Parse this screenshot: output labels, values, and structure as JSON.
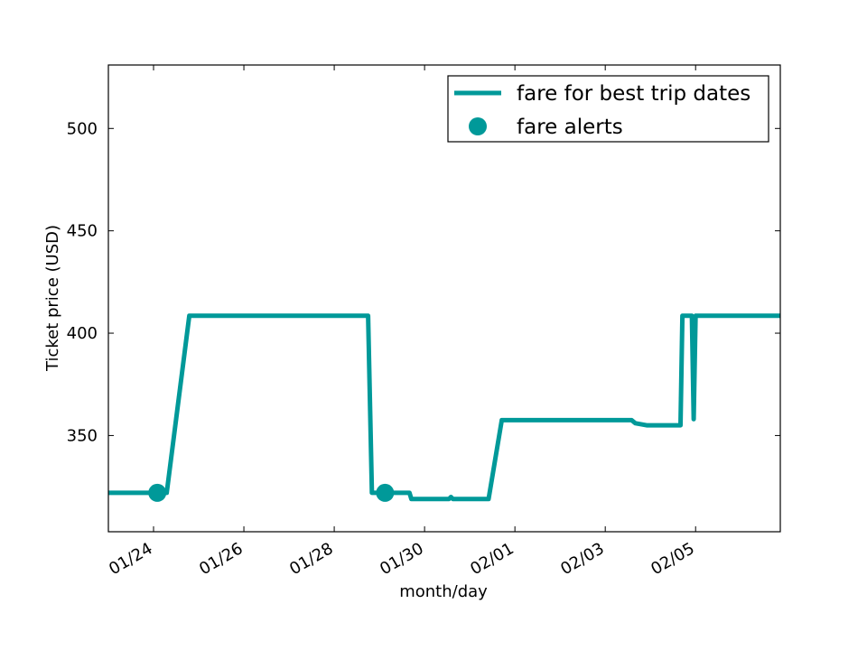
{
  "chart_data": {
    "type": "line",
    "title": "",
    "xlabel": "month/day",
    "ylabel": "Ticket price (USD)",
    "x_axis_type": "date",
    "xlim": [
      "2015-01-23T00:00",
      "2015-02-06T21:00"
    ],
    "ylim": [
      303,
      531
    ],
    "x_ticks": [
      {
        "date": "2015-01-24",
        "label": "01/24"
      },
      {
        "date": "2015-01-26",
        "label": "01/26"
      },
      {
        "date": "2015-01-28",
        "label": "01/28"
      },
      {
        "date": "2015-01-30",
        "label": "01/30"
      },
      {
        "date": "2015-02-01",
        "label": "02/01"
      },
      {
        "date": "2015-02-03",
        "label": "02/03"
      },
      {
        "date": "2015-02-05",
        "label": "02/05"
      }
    ],
    "y_ticks": [
      350,
      400,
      450,
      500
    ],
    "grid": false,
    "legend_position": "top-right",
    "series": [
      {
        "name": "fare for best trip dates",
        "style": "line",
        "color": "#009999",
        "points": [
          [
            "2015-01-23T00:00",
            322
          ],
          [
            "2015-01-24T07:00",
            322
          ],
          [
            "2015-01-24T19:00",
            408.5
          ],
          [
            "2015-01-28T18:00",
            408.5
          ],
          [
            "2015-01-28T20:00",
            322
          ],
          [
            "2015-01-29T16:00",
            322
          ],
          [
            "2015-01-29T17:00",
            319
          ],
          [
            "2015-01-30T13:00",
            319
          ],
          [
            "2015-01-30T14:00",
            320
          ],
          [
            "2015-01-30T15:00",
            319
          ],
          [
            "2015-01-31T10:00",
            319
          ],
          [
            "2015-01-31T17:00",
            357.5
          ],
          [
            "2015-02-03T14:00",
            357.5
          ],
          [
            "2015-02-03T16:00",
            356
          ],
          [
            "2015-02-03T22:00",
            355
          ],
          [
            "2015-02-04T16:00",
            355
          ],
          [
            "2015-02-04T17:00",
            408.5
          ],
          [
            "2015-02-04T22:00",
            408.5
          ],
          [
            "2015-02-04T23:00",
            358
          ],
          [
            "2015-02-05T00:00",
            408.5
          ],
          [
            "2015-02-06T21:00",
            408.5
          ]
        ]
      },
      {
        "name": "fare alerts",
        "style": "marker",
        "color": "#009999",
        "points": [
          [
            "2015-01-24T02:00",
            322
          ],
          [
            "2015-01-29T03:00",
            322
          ]
        ]
      }
    ]
  }
}
